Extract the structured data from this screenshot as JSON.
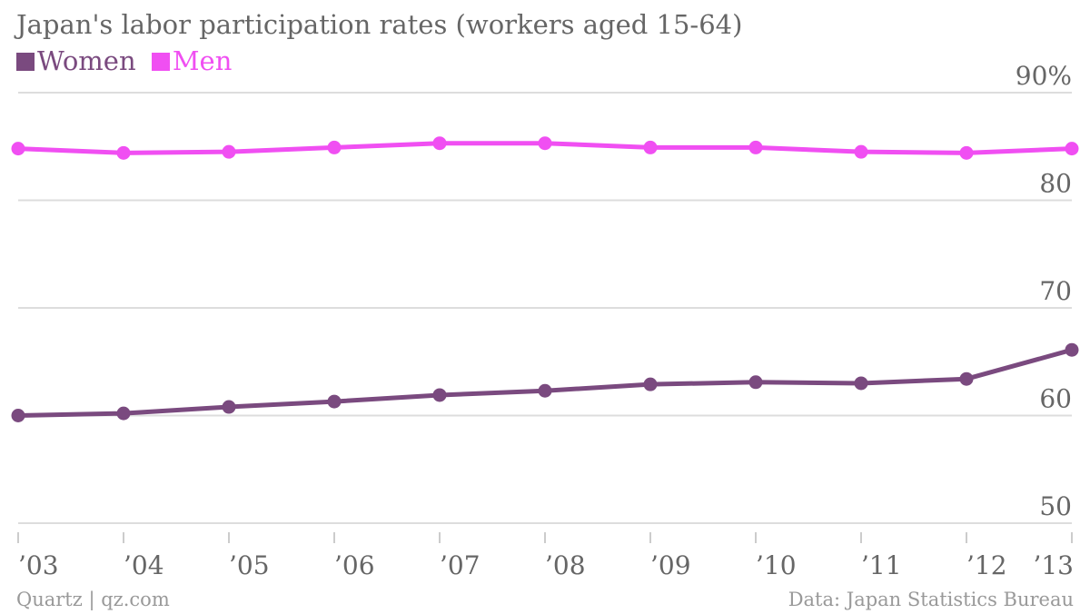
{
  "title": "Japan's labor participation rates (workers aged 15-64)",
  "footer": {
    "left": "Quartz | qz.com",
    "right": "Data: Japan Statistics Bureau"
  },
  "colors": {
    "women": "#7a4a7f",
    "men": "#f04ff2",
    "grid": "#dddddd",
    "text": "#666666"
  },
  "chart_data": {
    "type": "line",
    "title": "Japan's labor participation rates (workers aged 15-64)",
    "xlabel": "",
    "ylabel": "",
    "ylim": [
      50,
      90
    ],
    "yticks": [
      {
        "value": 90,
        "label": "90%"
      },
      {
        "value": 80,
        "label": "80"
      },
      {
        "value": 70,
        "label": "70"
      },
      {
        "value": 60,
        "label": "60"
      },
      {
        "value": 50,
        "label": "50"
      }
    ],
    "categories": [
      "’03",
      "’04",
      "’05",
      "’06",
      "’07",
      "’08",
      "’09",
      "’10",
      "’11",
      "’12",
      "’13"
    ],
    "grid": "horizontal",
    "legend": "top-left",
    "series": [
      {
        "name": "Women",
        "color": "#7a4a7f",
        "values": [
          60.0,
          60.2,
          60.8,
          61.3,
          61.9,
          62.3,
          62.9,
          63.1,
          63.0,
          63.4,
          66.1
        ]
      },
      {
        "name": "Men",
        "color": "#f04ff2",
        "values": [
          84.8,
          84.4,
          84.5,
          84.9,
          85.3,
          85.3,
          84.9,
          84.9,
          84.5,
          84.4,
          84.8
        ]
      }
    ]
  }
}
